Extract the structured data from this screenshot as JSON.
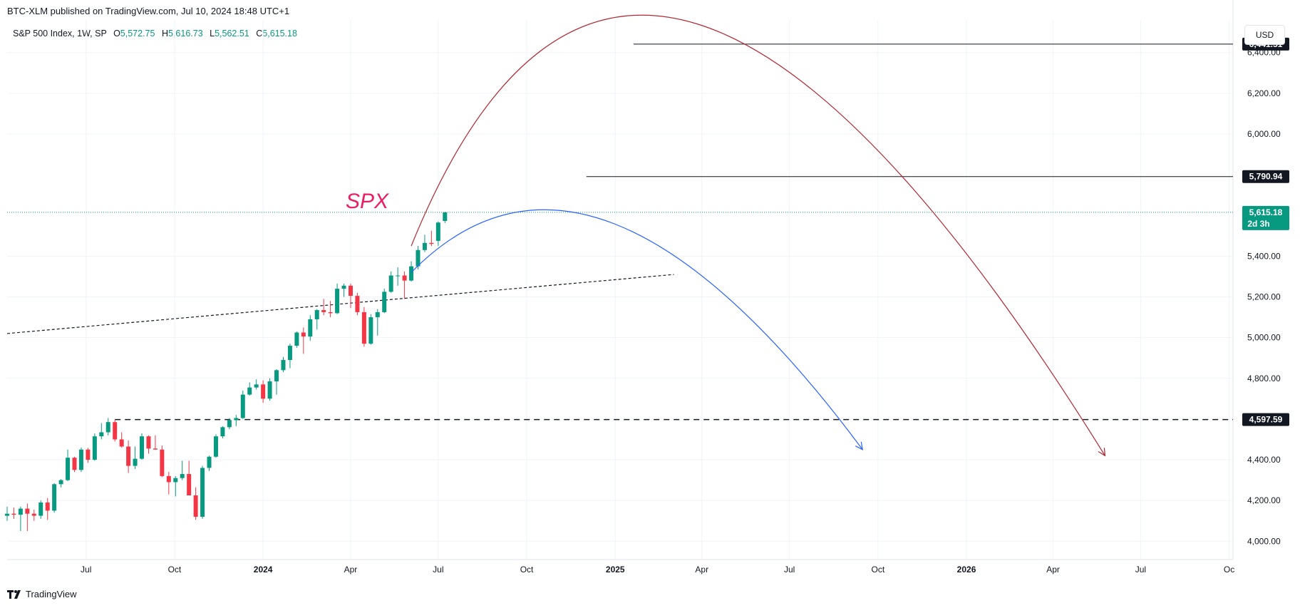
{
  "header": {
    "published": "BTC-XLM published on TradingView.com, Jul 10, 2024 18:48 UTC+1"
  },
  "symbol": {
    "name": "S&P 500 Index, 1W, SP",
    "o_label": "O",
    "o": "5,572.75",
    "h_label": "H",
    "h": "5,616.73",
    "l_label": "L",
    "l": "5,562.51",
    "c_label": "C",
    "c": "5,615.18"
  },
  "currency": "USD",
  "footer": {
    "brand": "TradingView"
  },
  "colors": {
    "up": "#089981",
    "down": "#f23645",
    "red_curve": "#b22833",
    "blue_curve": "#2962ff",
    "spx_label": "#e91e63"
  },
  "chart_data": {
    "type": "candlestick",
    "annotation": "SPX",
    "ylim": [
      3910,
      6560
    ],
    "y_ticks": [
      {
        "value": 4000,
        "label": "4,000.00"
      },
      {
        "value": 4200,
        "label": "4,200.00"
      },
      {
        "value": 4400,
        "label": "4,400.00"
      },
      {
        "value": 4800,
        "label": "4,800.00"
      },
      {
        "value": 5000,
        "label": "5,000.00"
      },
      {
        "value": 5200,
        "label": "5,200.00"
      },
      {
        "value": 5400,
        "label": "5,400.00"
      },
      {
        "value": 6000,
        "label": "6,000.00"
      },
      {
        "value": 6200,
        "label": "6,200.00"
      },
      {
        "value": 6400,
        "label": "6,400.00"
      }
    ],
    "x_range": [
      "2023-04-10",
      "2026-10-05"
    ],
    "x_ticks": [
      {
        "date": "2023-07-01",
        "label": "Jul",
        "bold": false
      },
      {
        "date": "2023-10-01",
        "label": "Oct",
        "bold": false
      },
      {
        "date": "2024-01-01",
        "label": "2024",
        "bold": true
      },
      {
        "date": "2024-04-01",
        "label": "Apr",
        "bold": false
      },
      {
        "date": "2024-07-01",
        "label": "Jul",
        "bold": false
      },
      {
        "date": "2024-10-01",
        "label": "Oct",
        "bold": false
      },
      {
        "date": "2025-01-01",
        "label": "2025",
        "bold": true
      },
      {
        "date": "2025-04-01",
        "label": "Apr",
        "bold": false
      },
      {
        "date": "2025-07-01",
        "label": "Jul",
        "bold": false
      },
      {
        "date": "2025-10-01",
        "label": "Oct",
        "bold": false
      },
      {
        "date": "2026-01-01",
        "label": "2026",
        "bold": true
      },
      {
        "date": "2026-04-01",
        "label": "Apr",
        "bold": false
      },
      {
        "date": "2026-07-01",
        "label": "Jul",
        "bold": false
      },
      {
        "date": "2026-10-01",
        "label": "Oc",
        "bold": false
      }
    ],
    "price_levels": [
      {
        "value": 6441.51,
        "label": "6,441.51",
        "style": "solid",
        "from": "2025-01-20"
      },
      {
        "value": 5790.94,
        "label": "5,790.94",
        "style": "solid",
        "from": "2024-12-02"
      },
      {
        "value": 4597.59,
        "label": "4,597.59",
        "style": "dashed",
        "from": "2023-07-31"
      }
    ],
    "last_price": {
      "value": 5615.18,
      "label": "5,615.18",
      "countdown": "2d 3h"
    },
    "trendline": {
      "start": {
        "date": "2023-04-10",
        "value": 5020
      },
      "end": {
        "date": "2025-03-03",
        "value": 5310
      }
    },
    "curves": [
      {
        "name": "red",
        "start": {
          "date": "2024-06-03",
          "value": 5450
        },
        "control": {
          "date": "2025-01-20",
          "value": 8150
        },
        "end": {
          "date": "2026-05-25",
          "value": 4420
        }
      },
      {
        "name": "blue",
        "start": {
          "date": "2024-06-03",
          "value": 5320
        },
        "control": {
          "date": "2024-12-09",
          "value": 6230
        },
        "end": {
          "date": "2025-09-15",
          "value": 4450
        }
      }
    ],
    "candles": [
      {
        "date": "2023-04-10",
        "o": 4125,
        "h": 4170,
        "l": 4100,
        "c": 4135
      },
      {
        "date": "2023-04-17",
        "o": 4135,
        "h": 4165,
        "l": 4110,
        "c": 4130
      },
      {
        "date": "2023-04-24",
        "o": 4130,
        "h": 4170,
        "l": 4050,
        "c": 4160
      },
      {
        "date": "2023-05-01",
        "o": 4160,
        "h": 4185,
        "l": 4050,
        "c": 4135
      },
      {
        "date": "2023-05-08",
        "o": 4135,
        "h": 4155,
        "l": 4100,
        "c": 4125
      },
      {
        "date": "2023-05-15",
        "o": 4125,
        "h": 4200,
        "l": 4110,
        "c": 4190
      },
      {
        "date": "2023-05-22",
        "o": 4190,
        "h": 4212,
        "l": 4105,
        "c": 4150
      },
      {
        "date": "2023-05-29",
        "o": 4150,
        "h": 4285,
        "l": 4140,
        "c": 4280
      },
      {
        "date": "2023-06-05",
        "o": 4280,
        "h": 4305,
        "l": 4265,
        "c": 4300
      },
      {
        "date": "2023-06-12",
        "o": 4300,
        "h": 4450,
        "l": 4295,
        "c": 4410
      },
      {
        "date": "2023-06-19",
        "o": 4410,
        "h": 4415,
        "l": 4340,
        "c": 4350
      },
      {
        "date": "2023-06-26",
        "o": 4350,
        "h": 4460,
        "l": 4340,
        "c": 4450
      },
      {
        "date": "2023-07-03",
        "o": 4450,
        "h": 4458,
        "l": 4385,
        "c": 4400
      },
      {
        "date": "2023-07-10",
        "o": 4400,
        "h": 4530,
        "l": 4395,
        "c": 4515
      },
      {
        "date": "2023-07-17",
        "o": 4515,
        "h": 4580,
        "l": 4500,
        "c": 4535
      },
      {
        "date": "2023-07-24",
        "o": 4535,
        "h": 4605,
        "l": 4520,
        "c": 4585
      },
      {
        "date": "2023-07-31",
        "o": 4585,
        "h": 4595,
        "l": 4490,
        "c": 4500
      },
      {
        "date": "2023-08-07",
        "o": 4500,
        "h": 4535,
        "l": 4460,
        "c": 4465
      },
      {
        "date": "2023-08-14",
        "o": 4465,
        "h": 4495,
        "l": 4335,
        "c": 4370
      },
      {
        "date": "2023-08-21",
        "o": 4370,
        "h": 4465,
        "l": 4355,
        "c": 4405
      },
      {
        "date": "2023-08-28",
        "o": 4405,
        "h": 4530,
        "l": 4400,
        "c": 4515
      },
      {
        "date": "2023-09-04",
        "o": 4515,
        "h": 4520,
        "l": 4430,
        "c": 4455
      },
      {
        "date": "2023-09-11",
        "o": 4455,
        "h": 4520,
        "l": 4450,
        "c": 4450
      },
      {
        "date": "2023-09-18",
        "o": 4450,
        "h": 4470,
        "l": 4315,
        "c": 4320
      },
      {
        "date": "2023-09-25",
        "o": 4320,
        "h": 4340,
        "l": 4230,
        "c": 4290
      },
      {
        "date": "2023-10-02",
        "o": 4290,
        "h": 4320,
        "l": 4220,
        "c": 4310
      },
      {
        "date": "2023-10-09",
        "o": 4310,
        "h": 4395,
        "l": 4300,
        "c": 4330
      },
      {
        "date": "2023-10-16",
        "o": 4330,
        "h": 4395,
        "l": 4225,
        "c": 4225
      },
      {
        "date": "2023-10-23",
        "o": 4225,
        "h": 4265,
        "l": 4105,
        "c": 4120
      },
      {
        "date": "2023-10-30",
        "o": 4120,
        "h": 4370,
        "l": 4110,
        "c": 4360
      },
      {
        "date": "2023-11-06",
        "o": 4360,
        "h": 4420,
        "l": 4345,
        "c": 4415
      },
      {
        "date": "2023-11-13",
        "o": 4415,
        "h": 4525,
        "l": 4410,
        "c": 4515
      },
      {
        "date": "2023-11-20",
        "o": 4515,
        "h": 4565,
        "l": 4505,
        "c": 4560
      },
      {
        "date": "2023-11-27",
        "o": 4560,
        "h": 4605,
        "l": 4550,
        "c": 4595
      },
      {
        "date": "2023-12-04",
        "o": 4595,
        "h": 4620,
        "l": 4565,
        "c": 4605
      },
      {
        "date": "2023-12-11",
        "o": 4605,
        "h": 4740,
        "l": 4600,
        "c": 4720
      },
      {
        "date": "2023-12-18",
        "o": 4720,
        "h": 4780,
        "l": 4715,
        "c": 4755
      },
      {
        "date": "2023-12-25",
        "o": 4755,
        "h": 4795,
        "l": 4745,
        "c": 4770
      },
      {
        "date": "2024-01-01",
        "o": 4770,
        "h": 4790,
        "l": 4680,
        "c": 4700
      },
      {
        "date": "2024-01-08",
        "o": 4700,
        "h": 4800,
        "l": 4690,
        "c": 4785
      },
      {
        "date": "2024-01-15",
        "o": 4785,
        "h": 4845,
        "l": 4720,
        "c": 4840
      },
      {
        "date": "2024-01-22",
        "o": 4840,
        "h": 4905,
        "l": 4830,
        "c": 4890
      },
      {
        "date": "2024-01-29",
        "o": 4890,
        "h": 4970,
        "l": 4850,
        "c": 4960
      },
      {
        "date": "2024-02-05",
        "o": 4960,
        "h": 5030,
        "l": 4950,
        "c": 5025
      },
      {
        "date": "2024-02-12",
        "o": 5025,
        "h": 5050,
        "l": 4920,
        "c": 5005
      },
      {
        "date": "2024-02-19",
        "o": 5005,
        "h": 5110,
        "l": 4985,
        "c": 5090
      },
      {
        "date": "2024-02-26",
        "o": 5090,
        "h": 5140,
        "l": 5040,
        "c": 5135
      },
      {
        "date": "2024-03-04",
        "o": 5135,
        "h": 5190,
        "l": 5110,
        "c": 5125
      },
      {
        "date": "2024-03-11",
        "o": 5125,
        "h": 5180,
        "l": 5100,
        "c": 5120
      },
      {
        "date": "2024-03-18",
        "o": 5120,
        "h": 5265,
        "l": 5115,
        "c": 5240
      },
      {
        "date": "2024-03-25",
        "o": 5240,
        "h": 5265,
        "l": 5200,
        "c": 5255
      },
      {
        "date": "2024-04-01",
        "o": 5255,
        "h": 5265,
        "l": 5145,
        "c": 5205
      },
      {
        "date": "2024-04-08",
        "o": 5205,
        "h": 5220,
        "l": 5110,
        "c": 5125
      },
      {
        "date": "2024-04-15",
        "o": 5125,
        "h": 5150,
        "l": 4955,
        "c": 4970
      },
      {
        "date": "2024-04-22",
        "o": 4970,
        "h": 5115,
        "l": 4965,
        "c": 5100
      },
      {
        "date": "2024-04-29",
        "o": 5100,
        "h": 5140,
        "l": 5010,
        "c": 5125
      },
      {
        "date": "2024-05-06",
        "o": 5125,
        "h": 5240,
        "l": 5120,
        "c": 5225
      },
      {
        "date": "2024-05-13",
        "o": 5225,
        "h": 5325,
        "l": 5220,
        "c": 5305
      },
      {
        "date": "2024-05-20",
        "o": 5305,
        "h": 5345,
        "l": 5255,
        "c": 5305
      },
      {
        "date": "2024-05-27",
        "o": 5305,
        "h": 5325,
        "l": 5190,
        "c": 5280
      },
      {
        "date": "2024-06-03",
        "o": 5280,
        "h": 5375,
        "l": 5275,
        "c": 5350
      },
      {
        "date": "2024-06-10",
        "o": 5350,
        "h": 5450,
        "l": 5335,
        "c": 5430
      },
      {
        "date": "2024-06-17",
        "o": 5430,
        "h": 5505,
        "l": 5420,
        "c": 5465
      },
      {
        "date": "2024-06-24",
        "o": 5465,
        "h": 5525,
        "l": 5450,
        "c": 5460
      },
      {
        "date": "2024-07-01",
        "o": 5475,
        "h": 5570,
        "l": 5450,
        "c": 5565
      },
      {
        "date": "2024-07-08",
        "o": 5572.75,
        "h": 5616.73,
        "l": 5562.51,
        "c": 5615.18
      }
    ]
  }
}
